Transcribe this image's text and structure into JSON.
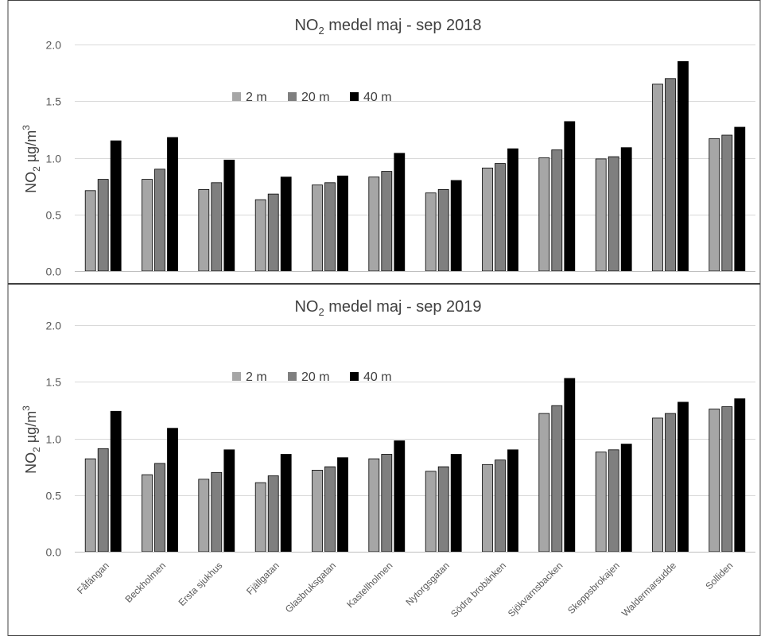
{
  "chart_data": [
    {
      "type": "bar",
      "title_main": "NO",
      "title_sub": "2",
      "title_rest": " medel maj - sep 2018",
      "ylabel_main": "NO",
      "ylabel_sub": "2",
      "ylabel_rest": " µg/m",
      "ylabel_sup": "3",
      "ylim": [
        0,
        2.0
      ],
      "yticks": [
        "0.0",
        "0.5",
        "1.0",
        "1.5",
        "2.0"
      ],
      "categories": [
        "Fåfängan",
        "Beckholmen",
        "Ersta sjukhus",
        "Fjällgatan",
        "Glasbruksgatan",
        "Kastellholmen",
        "Nytorgsgatan",
        "Södra brobänken",
        "Sjökvarnsbacken",
        "Skeppsbrokajen",
        "Waldermarsudde",
        "Solliden"
      ],
      "series": [
        {
          "name": "2 m",
          "color": "#a6a6a6",
          "values": [
            0.71,
            0.81,
            0.72,
            0.63,
            0.76,
            0.83,
            0.69,
            0.91,
            1.0,
            0.99,
            1.65,
            1.17
          ]
        },
        {
          "name": "20 m",
          "color": "#7f7f7f",
          "values": [
            0.81,
            0.9,
            0.78,
            0.68,
            0.78,
            0.88,
            0.72,
            0.95,
            1.07,
            1.01,
            1.7,
            1.2
          ]
        },
        {
          "name": "40 m",
          "color": "#000000",
          "values": [
            1.15,
            1.18,
            0.98,
            0.83,
            0.84,
            1.04,
            0.8,
            1.08,
            1.32,
            1.09,
            1.85,
            1.27
          ]
        }
      ],
      "legend": "top-center",
      "grid": true
    },
    {
      "type": "bar",
      "title_main": "NO",
      "title_sub": "2",
      "title_rest": " medel maj - sep 2019",
      "ylabel_main": "NO",
      "ylabel_sub": "2",
      "ylabel_rest": " µg/m",
      "ylabel_sup": "3",
      "ylim": [
        0,
        2.0
      ],
      "yticks": [
        "0.0",
        "0.5",
        "1.0",
        "1.5",
        "2.0"
      ],
      "categories": [
        "Fåfängan",
        "Beckholmen",
        "Ersta sjukhus",
        "Fjällgatan",
        "Glasbruksgatan",
        "Kastellholmen",
        "Nytorgsgatan",
        "Södra brobänken",
        "Sjökvarnsbacken",
        "Skeppsbrokajen",
        "Waldermarsudde",
        "Solliden"
      ],
      "series": [
        {
          "name": "2 m",
          "color": "#a6a6a6",
          "values": [
            0.82,
            0.68,
            0.64,
            0.61,
            0.72,
            0.82,
            0.71,
            0.77,
            1.22,
            0.88,
            1.18,
            1.26
          ]
        },
        {
          "name": "20 m",
          "color": "#7f7f7f",
          "values": [
            0.91,
            0.78,
            0.7,
            0.67,
            0.75,
            0.86,
            0.75,
            0.81,
            1.29,
            0.9,
            1.22,
            1.28
          ]
        },
        {
          "name": "40 m",
          "color": "#000000",
          "values": [
            1.24,
            1.09,
            0.9,
            0.86,
            0.83,
            0.98,
            0.86,
            0.9,
            1.53,
            0.95,
            1.32,
            1.35
          ]
        }
      ],
      "legend": "top-center",
      "grid": true
    }
  ]
}
